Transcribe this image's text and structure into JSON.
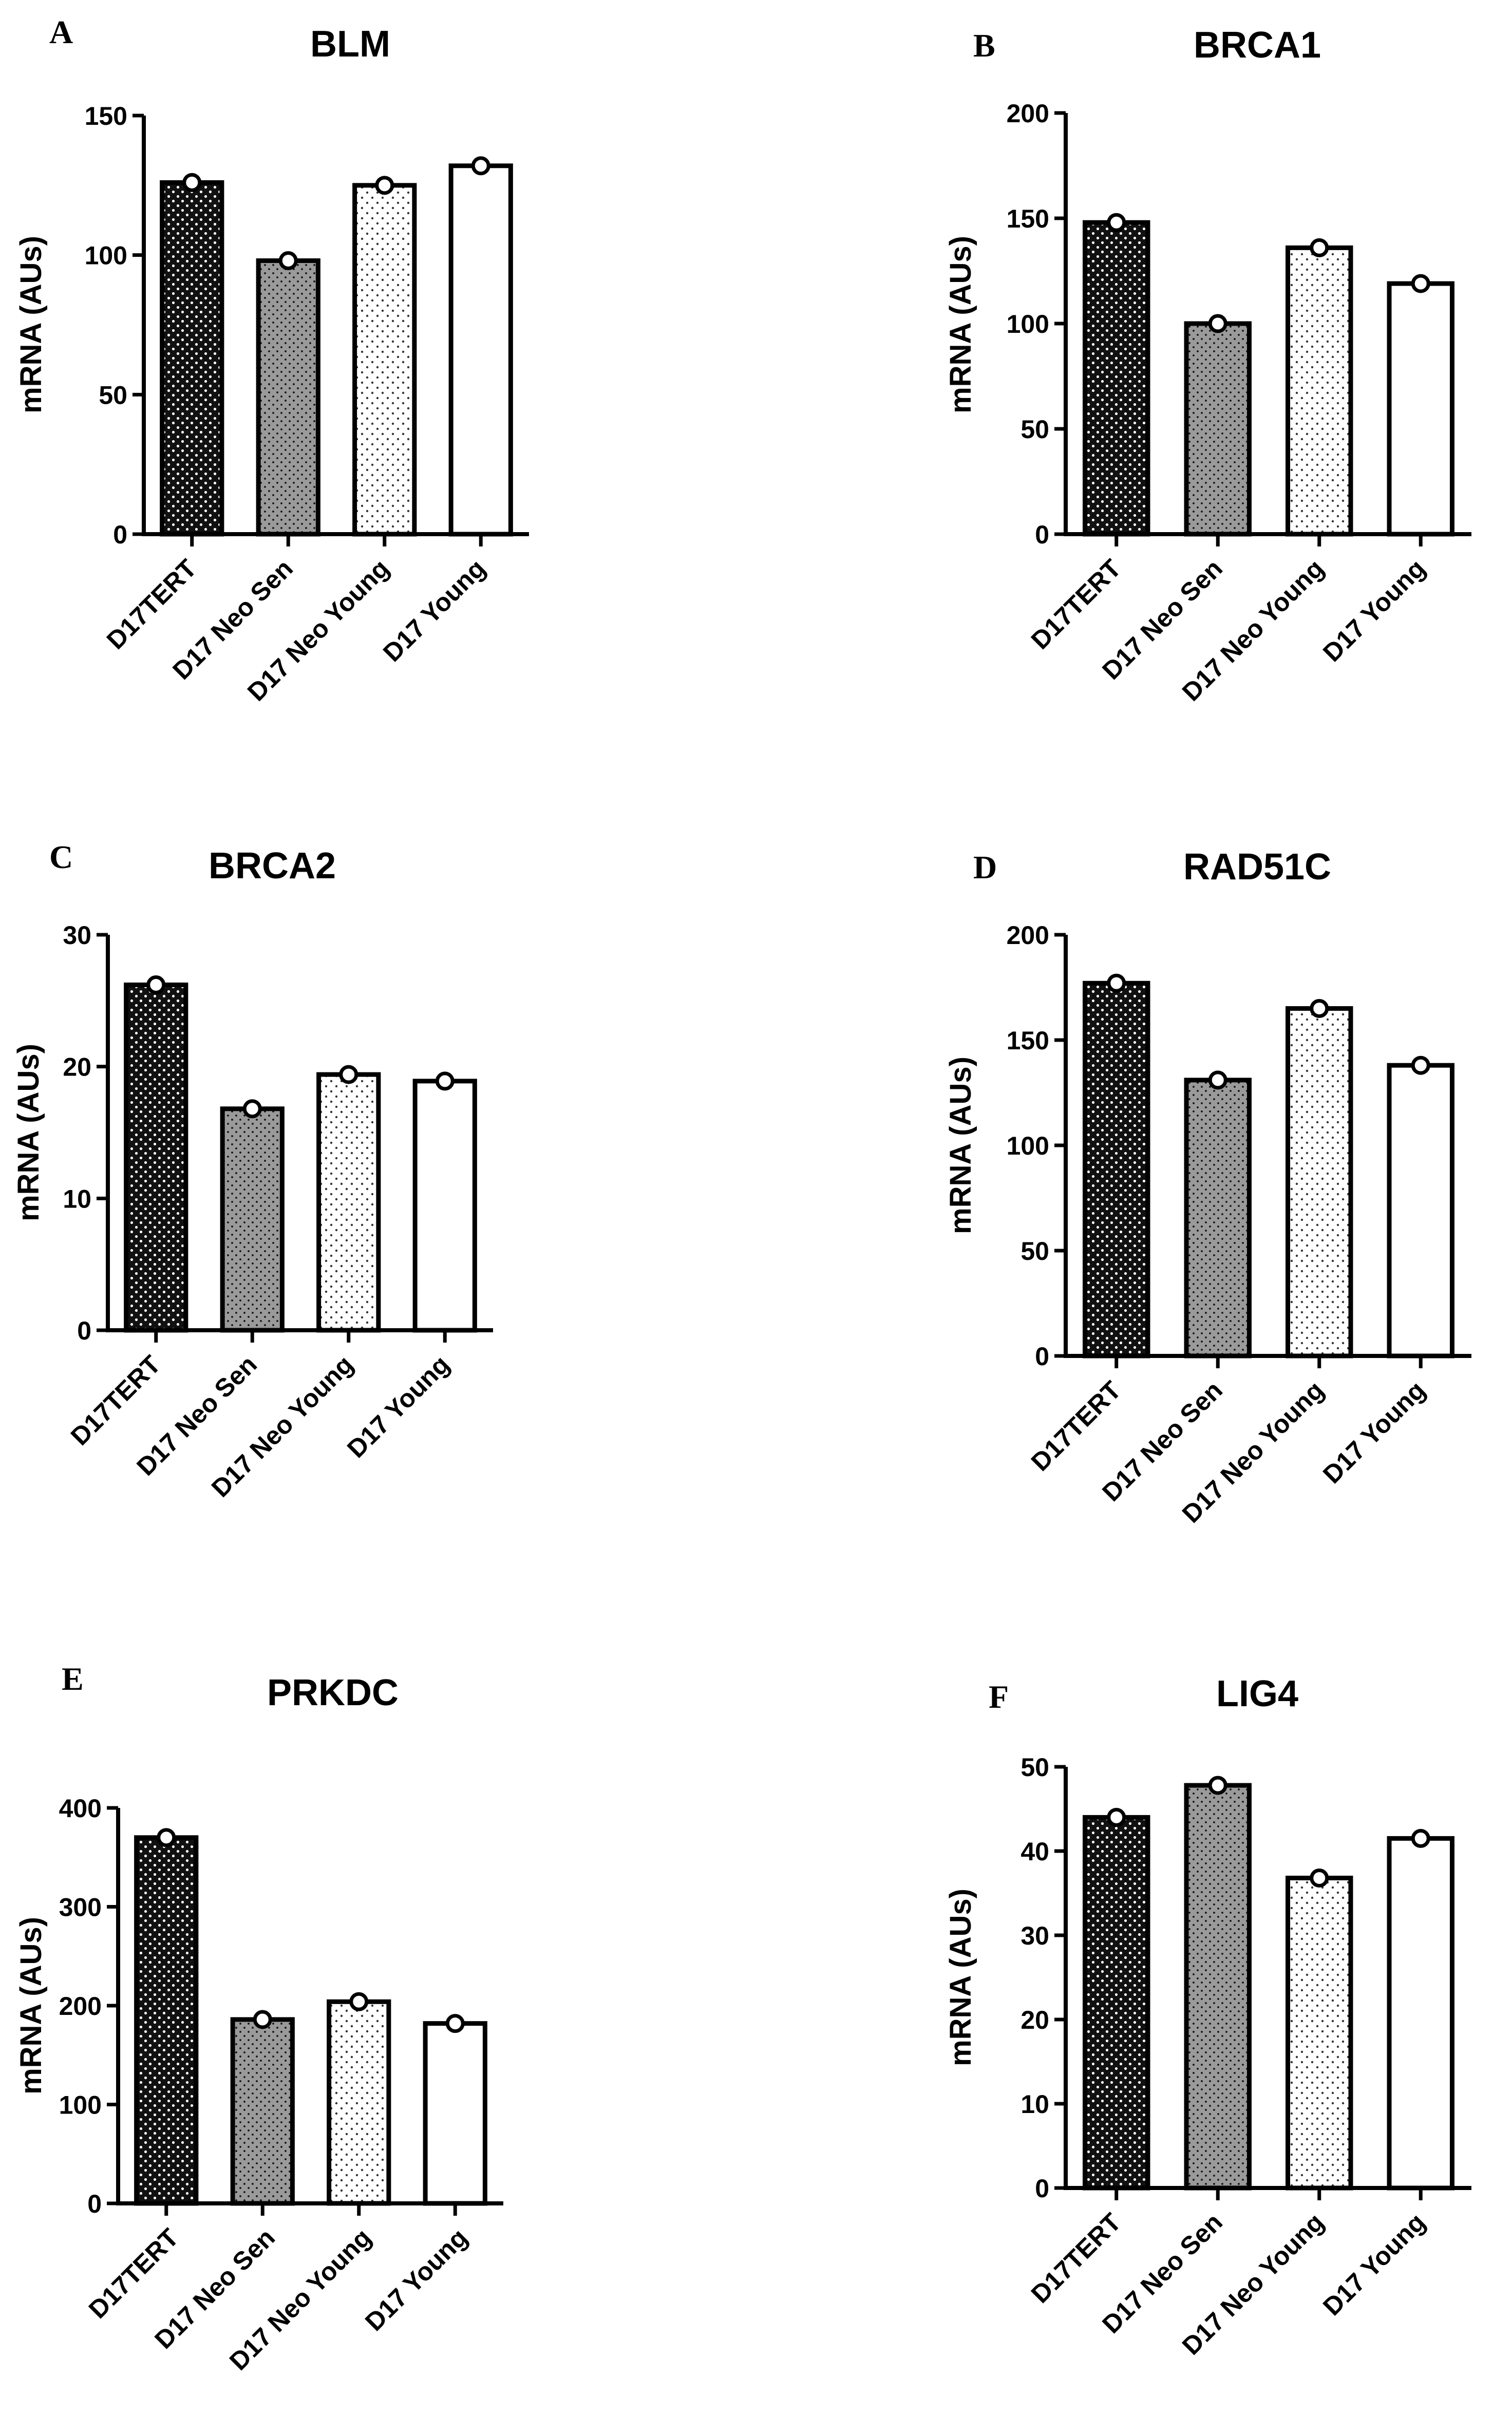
{
  "chart_data": [
    {
      "type": "bar",
      "panel": "A",
      "title": "BLM",
      "categories": [
        "D17TERT",
        "D17 Neo Sen",
        "D17 Neo Young",
        "D17 Young"
      ],
      "values": [
        126,
        98,
        125,
        132
      ],
      "ylabel": "mRNA (AUs)",
      "xlabel": "",
      "ylim": [
        0,
        150
      ],
      "yticks": [
        0,
        50,
        100,
        150
      ]
    },
    {
      "type": "bar",
      "panel": "B",
      "title": "BRCA1",
      "categories": [
        "D17TERT",
        "D17 Neo Sen",
        "D17 Neo Young",
        "D17 Young"
      ],
      "values": [
        148,
        100,
        136,
        119
      ],
      "ylabel": "mRNA (AUs)",
      "xlabel": "",
      "ylim": [
        0,
        200
      ],
      "yticks": [
        0,
        50,
        100,
        150,
        200
      ]
    },
    {
      "type": "bar",
      "panel": "C",
      "title": "BRCA2",
      "categories": [
        "D17TERT",
        "D17 Neo Sen",
        "D17 Neo Young",
        "D17 Young"
      ],
      "values": [
        26.2,
        16.8,
        19.4,
        18.9
      ],
      "ylabel": "mRNA (AUs)",
      "xlabel": "",
      "ylim": [
        0,
        30
      ],
      "yticks": [
        0,
        10,
        20,
        30
      ]
    },
    {
      "type": "bar",
      "panel": "D",
      "title": "RAD51C",
      "categories": [
        "D17TERT",
        "D17 Neo Sen",
        "D17 Neo Young",
        "D17 Young"
      ],
      "values": [
        177,
        131,
        165,
        138
      ],
      "ylabel": "mRNA (AUs)",
      "xlabel": "",
      "ylim": [
        0,
        200
      ],
      "yticks": [
        0,
        50,
        100,
        150,
        200
      ]
    },
    {
      "type": "bar",
      "panel": "E",
      "title": "PRKDC",
      "categories": [
        "D17TERT",
        "D17 Neo Sen",
        "D17 Neo Young",
        "D17 Young"
      ],
      "values": [
        370,
        186,
        204,
        182
      ],
      "ylabel": "mRNA (AUs)",
      "xlabel": "",
      "ylim": [
        0,
        400
      ],
      "yticks": [
        0,
        100,
        200,
        300,
        400
      ]
    },
    {
      "type": "bar",
      "panel": "F",
      "title": "LIG4",
      "categories": [
        "D17TERT",
        "D17 Neo Sen",
        "D17 Neo Young",
        "D17 Young"
      ],
      "values": [
        44,
        47.8,
        36.8,
        41.5
      ],
      "ylabel": "mRNA (AUs)",
      "xlabel": "",
      "ylim": [
        0,
        50
      ],
      "yticks": [
        0,
        10,
        20,
        30,
        40,
        50
      ]
    }
  ],
  "bar_styles": [
    {
      "name": "dense-dots-on-black",
      "fill": "#111111",
      "dot": "#ffffff"
    },
    {
      "name": "dots-on-gray",
      "fill": "#9a9a9a",
      "dot": "#111111"
    },
    {
      "name": "dots-on-white",
      "fill": "#ffffff",
      "dot": "#333333"
    },
    {
      "name": "plain-white",
      "fill": "#ffffff",
      "dot": ""
    }
  ]
}
